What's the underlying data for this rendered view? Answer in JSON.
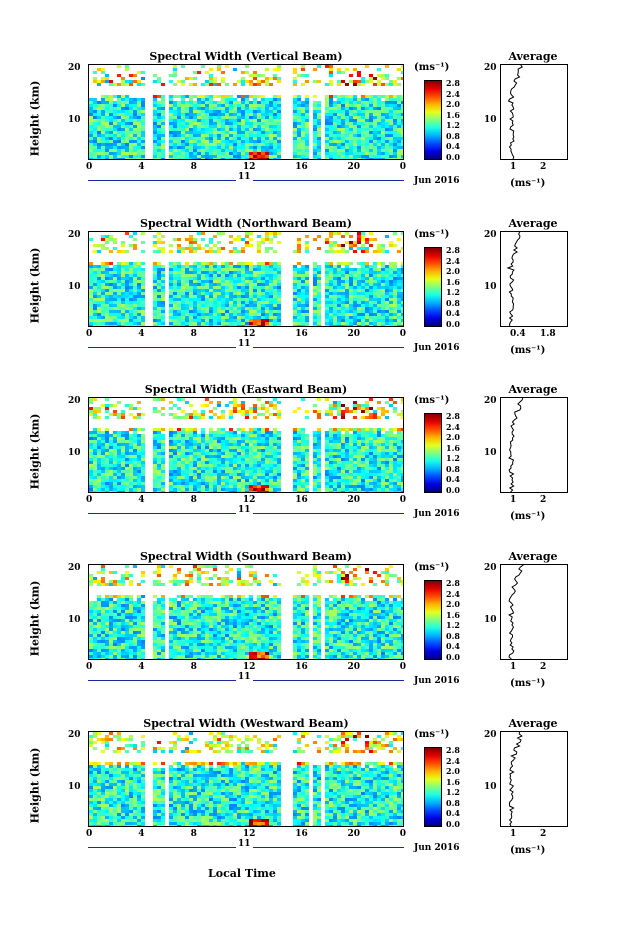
{
  "panels": [
    {
      "title": "Spectral Width (Vertical Beam)",
      "avg_xticks": [
        "1",
        "2"
      ]
    },
    {
      "title": "Spectral Width (Northward Beam)",
      "avg_xticks": [
        "0.4",
        "1.8"
      ]
    },
    {
      "title": "Spectral Width (Eastward Beam)",
      "avg_xticks": [
        "1",
        "2"
      ]
    },
    {
      "title": "Spectral Width (Southward Beam)",
      "avg_xticks": [
        "1",
        "2"
      ]
    },
    {
      "title": "Spectral Width (Westward Beam)",
      "avg_xticks": [
        "1",
        "2"
      ]
    }
  ],
  "common": {
    "ylabel": "Height (km)",
    "yticks": [
      "20",
      "10"
    ],
    "xticks": [
      "0",
      "4",
      "8",
      "12",
      "16",
      "20",
      "0"
    ],
    "day_label": "11",
    "month_label": "Jun 2016",
    "xlabel": "Local Time",
    "avg_title": "Average",
    "unit": "(ms⁻¹)",
    "colorbar_labels": [
      "2.8",
      "2.4",
      "2.0",
      "1.6",
      "1.2",
      "0.8",
      "0.4",
      "0.0"
    ]
  },
  "chart_data": {
    "type": "heatmap",
    "xlabel": "Local Time",
    "ylabel": "Height (km)",
    "x_range_hours": [
      0,
      24
    ],
    "y_range_km": [
      2,
      20
    ],
    "color_range": [
      0.0,
      2.8
    ],
    "colormap": "jet",
    "missing_data_gaps_hours": [
      [
        4.2,
        4.6
      ],
      [
        5.6,
        5.9
      ],
      [
        14.6,
        15.4
      ],
      [
        16.8,
        17.1
      ],
      [
        17.5,
        17.9
      ]
    ]
  }
}
